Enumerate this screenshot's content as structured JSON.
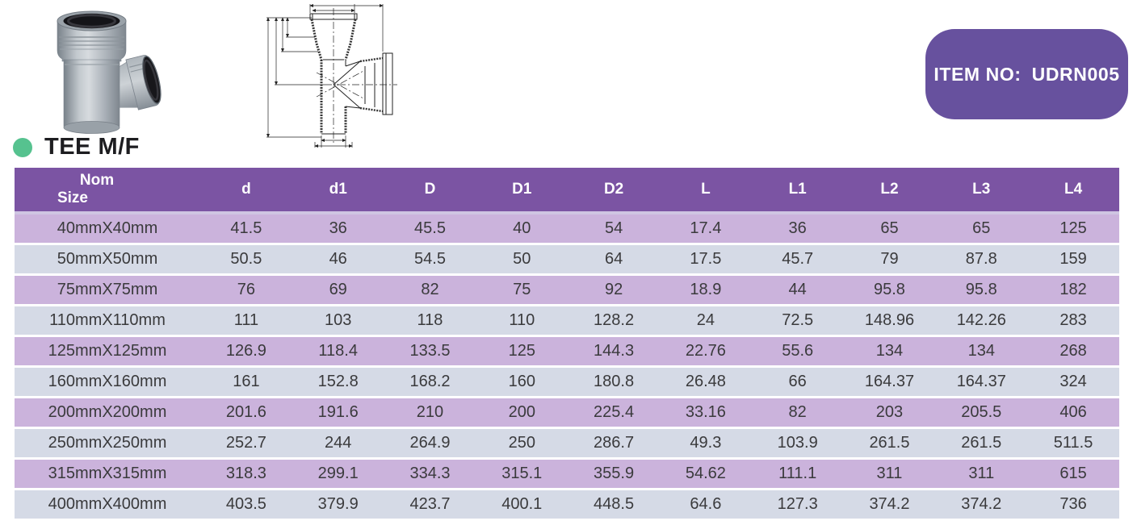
{
  "title": {
    "text": "TEE M/F",
    "bullet_color": "#56C28F",
    "text_color": "#1D1D20"
  },
  "badge": {
    "label": "ITEM NO:",
    "value": "UDRN005",
    "bg": "#67519E",
    "text_color": "#FFFFFF"
  },
  "images": {
    "product_photo": "grey-pvc-tee-mf-fitting-photo",
    "technical_drawing": "tee-mf-dimension-line-drawing"
  },
  "table": {
    "header_bg": "#7B54A3",
    "header_text_color": "#FFFFFF",
    "row_odd_bg": "#CBB3DC",
    "row_even_bg": "#D5DAE6",
    "text_color": "#3A3A3C",
    "columns": [
      "Nom\nSize",
      "d",
      "d1",
      "D",
      "D1",
      "D2",
      "L",
      "L1",
      "L2",
      "L3",
      "L4"
    ],
    "rows": [
      [
        "40mmX40mm",
        "41.5",
        "36",
        "45.5",
        "40",
        "54",
        "17.4",
        "36",
        "65",
        "65",
        "125"
      ],
      [
        "50mmX50mm",
        "50.5",
        "46",
        "54.5",
        "50",
        "64",
        "17.5",
        "45.7",
        "79",
        "87.8",
        "159"
      ],
      [
        "75mmX75mm",
        "76",
        "69",
        "82",
        "75",
        "92",
        "18.9",
        "44",
        "95.8",
        "95.8",
        "182"
      ],
      [
        "110mmX110mm",
        "111",
        "103",
        "118",
        "110",
        "128.2",
        "24",
        "72.5",
        "148.96",
        "142.26",
        "283"
      ],
      [
        "125mmX125mm",
        "126.9",
        "118.4",
        "133.5",
        "125",
        "144.3",
        "22.76",
        "55.6",
        "134",
        "134",
        "268"
      ],
      [
        "160mmX160mm",
        "161",
        "152.8",
        "168.2",
        "160",
        "180.8",
        "26.48",
        "66",
        "164.37",
        "164.37",
        "324"
      ],
      [
        "200mmX200mm",
        "201.6",
        "191.6",
        "210",
        "200",
        "225.4",
        "33.16",
        "82",
        "203",
        "205.5",
        "406"
      ],
      [
        "250mmX250mm",
        "252.7",
        "244",
        "264.9",
        "250",
        "286.7",
        "49.3",
        "103.9",
        "261.5",
        "261.5",
        "511.5"
      ],
      [
        "315mmX315mm",
        "318.3",
        "299.1",
        "334.3",
        "315.1",
        "355.9",
        "54.62",
        "111.1",
        "311",
        "311",
        "615"
      ],
      [
        "400mmX400mm",
        "403.5",
        "379.9",
        "423.7",
        "400.1",
        "448.5",
        "64.6",
        "127.3",
        "374.2",
        "374.2",
        "736"
      ]
    ]
  }
}
